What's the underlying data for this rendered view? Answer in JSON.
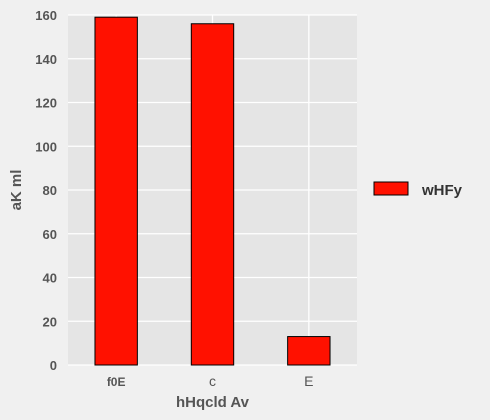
{
  "chart_data": {
    "type": "bar",
    "categories": [
      "f0E",
      "c",
      "E"
    ],
    "series": [
      {
        "name": "wHFy",
        "values": [
          159,
          156,
          13
        ]
      }
    ],
    "xlabel": "hHqcld  Av",
    "ylabel": "aK ml",
    "ylim": [
      0,
      160
    ],
    "yticks": [
      0,
      20,
      40,
      60,
      80,
      100,
      120,
      140,
      160
    ],
    "grid": true,
    "legend": "right",
    "colors": {
      "bar": "#ff1100",
      "bar_edge": "#000000",
      "plot_bg": "#e5e5e5",
      "grid": "#ffffff",
      "page_bg": "#f0f0f0"
    }
  }
}
